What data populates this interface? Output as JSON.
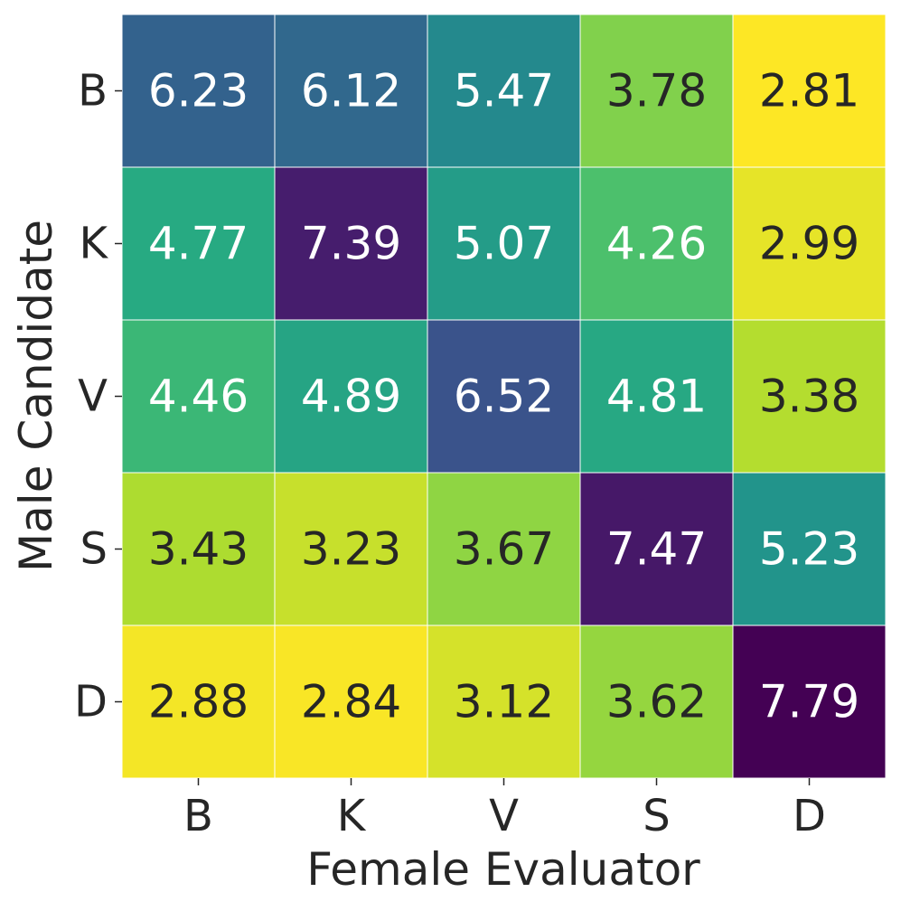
{
  "chart_data": {
    "type": "heatmap",
    "x_label": "Female Evaluator",
    "y_label": "Male Candidate",
    "x_categories": [
      "B",
      "K",
      "V",
      "S",
      "D"
    ],
    "y_categories": [
      "B",
      "K",
      "V",
      "S",
      "D"
    ],
    "values": [
      [
        6.23,
        6.12,
        5.47,
        3.78,
        2.81
      ],
      [
        4.77,
        7.39,
        5.07,
        4.26,
        2.99
      ],
      [
        4.46,
        4.89,
        6.52,
        4.81,
        3.38
      ],
      [
        3.43,
        3.23,
        3.67,
        7.47,
        5.23
      ],
      [
        2.88,
        2.84,
        3.12,
        3.62,
        7.79
      ]
    ],
    "colormap": "viridis_r"
  }
}
